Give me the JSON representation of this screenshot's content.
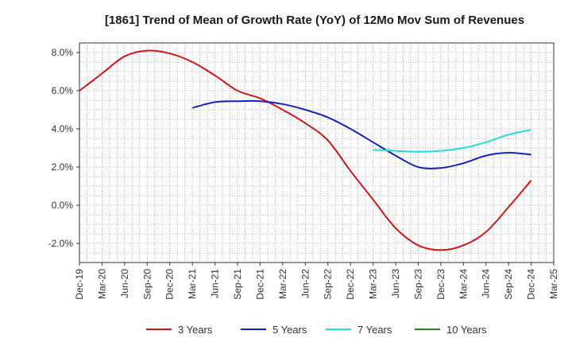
{
  "chart_data": {
    "type": "line",
    "title": "[1861]  Trend of Mean of Growth Rate (YoY) of 12Mo Mov Sum of Revenues",
    "xlabel": "",
    "ylabel": "",
    "ylim": [
      -3.0,
      8.5
    ],
    "yticks": [
      -2.0,
      0.0,
      2.0,
      4.0,
      6.0,
      8.0
    ],
    "ytick_labels": [
      "-2.0%",
      "0.0%",
      "2.0%",
      "4.0%",
      "6.0%",
      "8.0%"
    ],
    "xtick_labels": [
      "Dec-19",
      "Mar-20",
      "Jun-20",
      "Sep-20",
      "Dec-20",
      "Mar-21",
      "Jun-21",
      "Sep-21",
      "Dec-21",
      "Mar-22",
      "Jun-22",
      "Sep-22",
      "Dec-22",
      "Mar-23",
      "Jun-23",
      "Sep-23",
      "Dec-23",
      "Mar-24",
      "Jun-24",
      "Sep-24",
      "Dec-24",
      "Mar-25"
    ],
    "grid": true,
    "legend_position": "bottom",
    "series": [
      {
        "name": "3 Years",
        "color": "#dd1111",
        "start_index": 0,
        "values": [
          6.0,
          6.9,
          7.8,
          8.1,
          7.95,
          7.5,
          6.8,
          6.0,
          5.6,
          5.0,
          4.3,
          3.4,
          1.8,
          0.3,
          -1.2,
          -2.1,
          -2.35,
          -2.1,
          -1.4,
          -0.1,
          1.3
        ]
      },
      {
        "name": "5 Years",
        "color": "#1122cc",
        "start_index": 5,
        "values": [
          5.1,
          5.4,
          5.45,
          5.45,
          5.3,
          5.0,
          4.6,
          4.0,
          3.3,
          2.6,
          2.0,
          1.95,
          2.2,
          2.6,
          2.75,
          2.65
        ]
      },
      {
        "name": "7 Years",
        "color": "#22dddd",
        "start_index": 13,
        "values": [
          2.9,
          2.85,
          2.8,
          2.85,
          3.0,
          3.3,
          3.7,
          3.95
        ]
      },
      {
        "name": "10 Years",
        "color": "#228822",
        "start_index": 0,
        "values": []
      }
    ]
  }
}
